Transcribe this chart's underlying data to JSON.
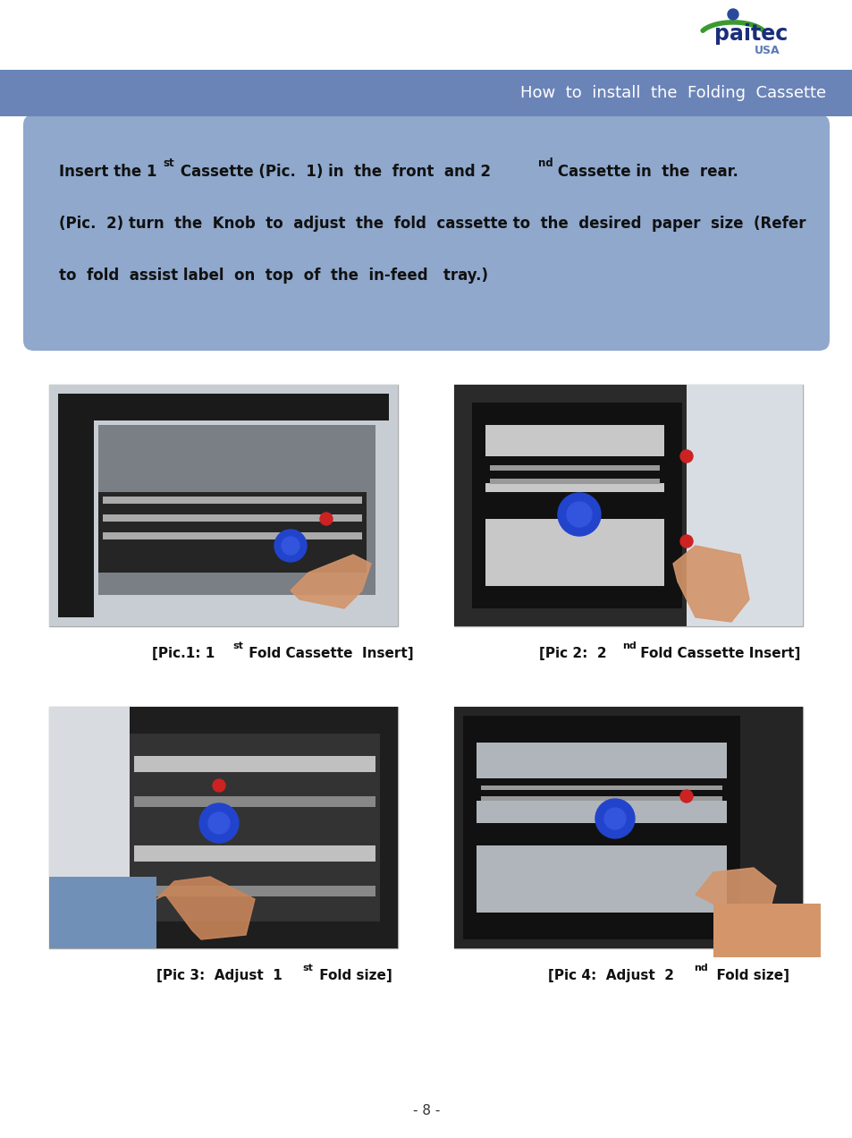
{
  "page_bg": "#ffffff",
  "header_bar_color": "#6b84b8",
  "header_text": "How  to  install  the  Folding  Cassette",
  "header_text_color": "#ffffff",
  "info_box_color": "#8fa8cc",
  "caption1a": "[Pic.1: 1",
  "caption1b": "st",
  "caption1c": " Fold Cassette  Insert]",
  "caption2a": "[Pic 2:  2",
  "caption2b": "nd",
  "caption2c": " Fold Cassette Insert]",
  "caption3a": "[Pic 3:  Adjust  1",
  "caption3b": "st",
  "caption3c": " Fold size]",
  "caption4a": "[Pic 4:  Adjust  2",
  "caption4b": "nd",
  "caption4c": "  Fold size]",
  "page_number": "- 8 -",
  "logo_text1": "paitec",
  "logo_text2": "USA"
}
